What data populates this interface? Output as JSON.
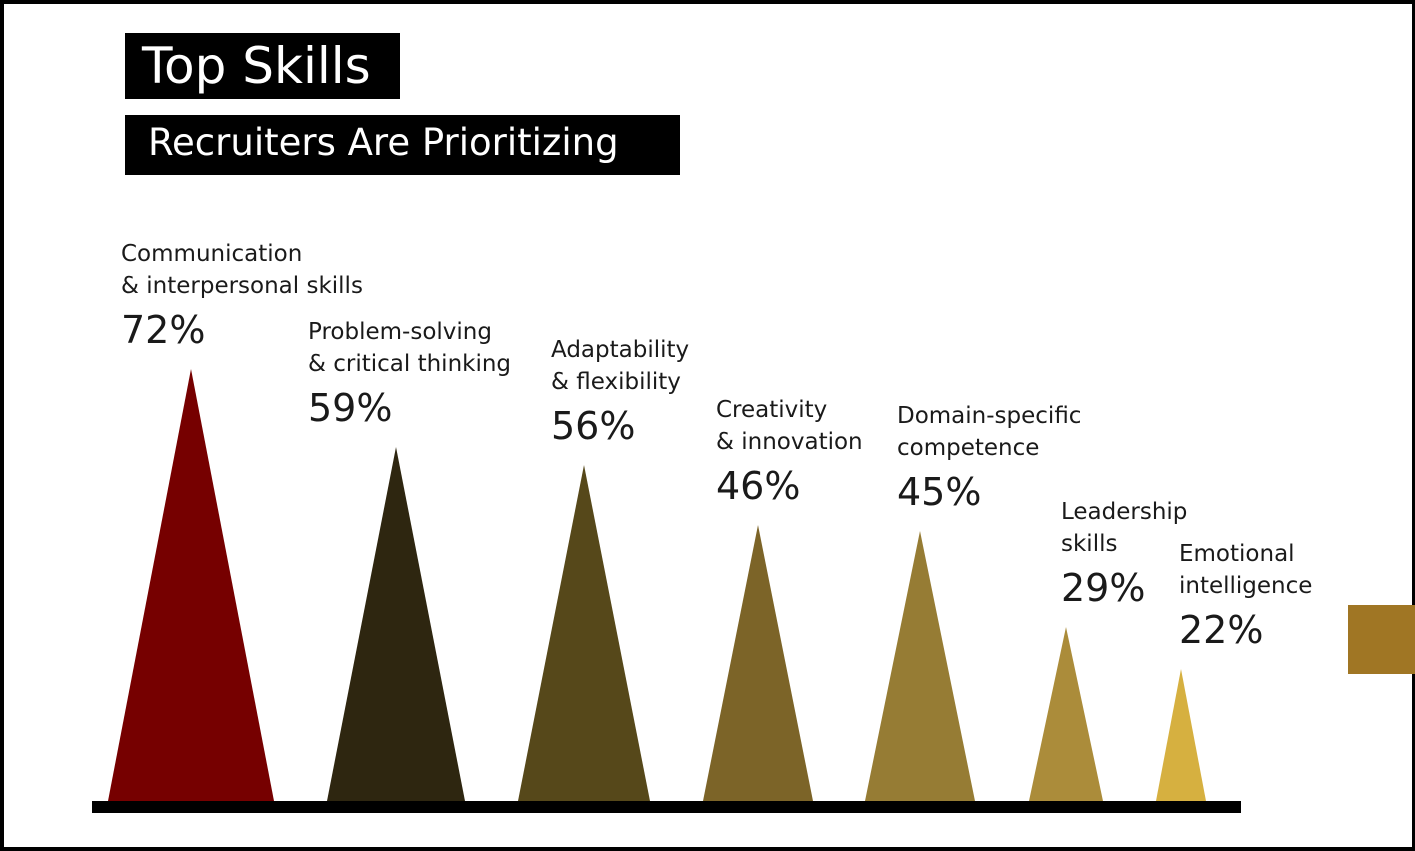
{
  "title": "Top Skills",
  "subtitle": "Recruiters Are Prioritizing",
  "chart_data": {
    "type": "bar",
    "title": "Top Skills",
    "subtitle": "Recruiters Are Prioritizing",
    "unit": "%",
    "ylim": [
      0,
      100
    ],
    "grid": false,
    "categories": [
      "Communication & interpersonal skills",
      "Problem-solving & critical thinking",
      "Adaptability & flexibility",
      "Creativity & innovation",
      "Domain-specific competence",
      "Leadership skills",
      "Emotional intelligence"
    ],
    "category_lines": [
      [
        "Communication",
        "& interpersonal skills"
      ],
      [
        "Problem-solving",
        "& critical thinking"
      ],
      [
        "Adaptability",
        "& flexibility"
      ],
      [
        "Creativity",
        "& innovation"
      ],
      [
        "Domain-specific",
        "competence"
      ],
      [
        "Leadership",
        "skills"
      ],
      [
        "Emotional",
        "intelligence"
      ]
    ],
    "values": [
      72,
      59,
      56,
      46,
      45,
      29,
      22
    ],
    "value_labels": [
      "72%",
      "59%",
      "56%",
      "46%",
      "45%",
      "29%",
      "22%"
    ],
    "colors": [
      "#760000",
      "#2e2610",
      "#56481a",
      "#7c6428",
      "#967c34",
      "#ab8c3a",
      "#d6b040"
    ]
  }
}
